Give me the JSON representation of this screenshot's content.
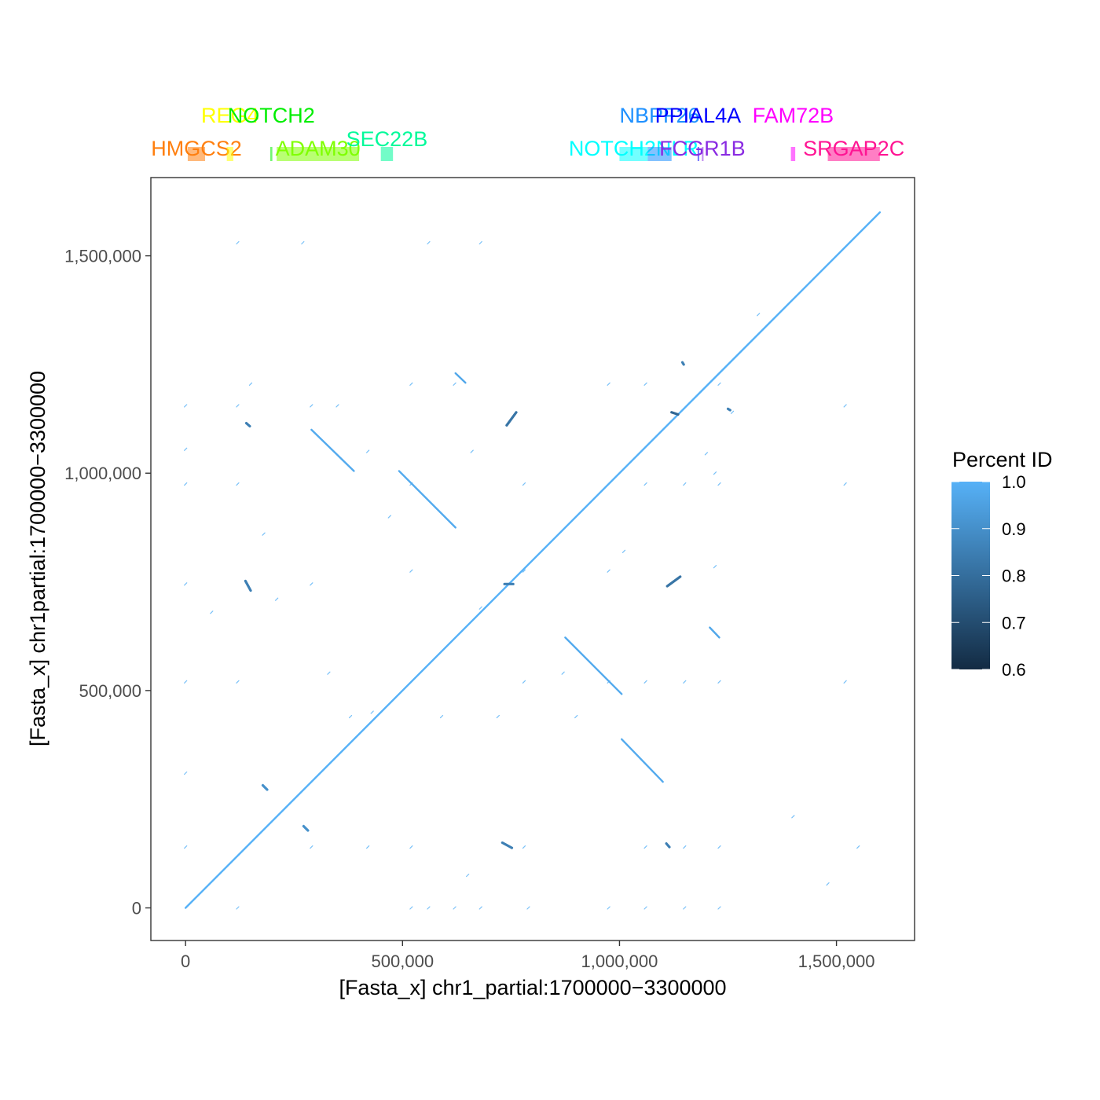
{
  "chart_data": {
    "type": "scatter",
    "title": "",
    "xlabel": "[Fasta_x] chr1_partial:1700000−3300000",
    "ylabel": "[Fasta_x] chr1partial:1700000−3300000",
    "xlim": [
      -80000,
      1680000
    ],
    "ylim": [
      -75000,
      1680000
    ],
    "x_ticks": [
      0,
      500000,
      1000000,
      1500000
    ],
    "x_tick_labels": [
      "0",
      "500,000",
      "1,000,000",
      "1,500,000"
    ],
    "y_ticks": [
      0,
      500000,
      1000000,
      1500000
    ],
    "y_tick_labels": [
      "0",
      "500,000",
      "1,000,000",
      "1,500,000"
    ],
    "grid": false,
    "legend": {
      "title": "Percent ID",
      "position": "right",
      "range": [
        0.6,
        1.0
      ],
      "ticks": [
        1.0,
        0.9,
        0.8,
        0.7,
        0.6
      ],
      "tick_labels": [
        "1.0",
        "0.9",
        "0.8",
        "0.7",
        "0.6"
      ],
      "color_low": "#132b43",
      "color_high": "#56b1f7"
    },
    "segments": [
      {
        "x1": 0,
        "y1": 0,
        "x2": 1600000,
        "y2": 1600000,
        "pid": 1.0
      },
      {
        "x1": 290000,
        "y1": 1100000,
        "x2": 388000,
        "y2": 1005000,
        "pid": 0.98
      },
      {
        "x1": 492000,
        "y1": 1005000,
        "x2": 622000,
        "y2": 875000,
        "pid": 0.98
      },
      {
        "x1": 875000,
        "y1": 622000,
        "x2": 1005000,
        "y2": 492000,
        "pid": 0.98
      },
      {
        "x1": 1005000,
        "y1": 388000,
        "x2": 1100000,
        "y2": 290000,
        "pid": 0.98
      },
      {
        "x1": 622000,
        "y1": 1230000,
        "x2": 645000,
        "y2": 1208000,
        "pid": 0.97
      },
      {
        "x1": 1208000,
        "y1": 645000,
        "x2": 1230000,
        "y2": 622000,
        "pid": 0.97
      },
      {
        "x1": 740000,
        "y1": 1110000,
        "x2": 762000,
        "y2": 1140000,
        "pid": 0.82
      },
      {
        "x1": 1110000,
        "y1": 740000,
        "x2": 1140000,
        "y2": 762000,
        "pid": 0.82
      },
      {
        "x1": 140000,
        "y1": 1115000,
        "x2": 148000,
        "y2": 1108000,
        "pid": 0.85
      },
      {
        "x1": 1108000,
        "y1": 148000,
        "x2": 1115000,
        "y2": 140000,
        "pid": 0.85
      },
      {
        "x1": 138000,
        "y1": 752000,
        "x2": 150000,
        "y2": 730000,
        "pid": 0.85
      },
      {
        "x1": 730000,
        "y1": 150000,
        "x2": 752000,
        "y2": 138000,
        "pid": 0.85
      },
      {
        "x1": 1120000,
        "y1": 1140000,
        "x2": 1135000,
        "y2": 1135000,
        "pid": 0.78
      },
      {
        "x1": 735000,
        "y1": 745000,
        "x2": 755000,
        "y2": 745000,
        "pid": 0.85
      },
      {
        "x1": 178000,
        "y1": 282000,
        "x2": 188000,
        "y2": 272000,
        "pid": 0.9
      },
      {
        "x1": 272000,
        "y1": 188000,
        "x2": 282000,
        "y2": 178000,
        "pid": 0.9
      },
      {
        "x1": 1145000,
        "y1": 1255000,
        "x2": 1148000,
        "y2": 1250000,
        "pid": 0.85
      },
      {
        "x1": 1250000,
        "y1": 1148000,
        "x2": 1255000,
        "y2": 1145000,
        "pid": 0.85
      }
    ],
    "dots": [
      {
        "x": 0,
        "y": 1155000
      },
      {
        "x": 0,
        "y": 745000
      },
      {
        "x": 0,
        "y": 520000
      },
      {
        "x": 0,
        "y": 975000
      },
      {
        "x": 0,
        "y": 1055000
      },
      {
        "x": 0,
        "y": 140000
      },
      {
        "x": 0,
        "y": 310000
      },
      {
        "x": 120000,
        "y": 1155000
      },
      {
        "x": 120000,
        "y": 975000
      },
      {
        "x": 120000,
        "y": 520000
      },
      {
        "x": 120000,
        "y": 0
      },
      {
        "x": 120000,
        "y": 1530000
      },
      {
        "x": 150000,
        "y": 1205000
      },
      {
        "x": 290000,
        "y": 1155000
      },
      {
        "x": 290000,
        "y": 745000
      },
      {
        "x": 290000,
        "y": 140000
      },
      {
        "x": 520000,
        "y": 1205000
      },
      {
        "x": 520000,
        "y": 975000
      },
      {
        "x": 520000,
        "y": 775000
      },
      {
        "x": 520000,
        "y": 520000
      },
      {
        "x": 520000,
        "y": 140000
      },
      {
        "x": 520000,
        "y": 0
      },
      {
        "x": 560000,
        "y": 1530000
      },
      {
        "x": 560000,
        "y": 0
      },
      {
        "x": 620000,
        "y": 1205000
      },
      {
        "x": 620000,
        "y": 0
      },
      {
        "x": 680000,
        "y": 1530000
      },
      {
        "x": 680000,
        "y": 0
      },
      {
        "x": 780000,
        "y": 975000
      },
      {
        "x": 780000,
        "y": 520000
      },
      {
        "x": 780000,
        "y": 140000
      },
      {
        "x": 790000,
        "y": 0
      },
      {
        "x": 975000,
        "y": 1205000
      },
      {
        "x": 975000,
        "y": 975000
      },
      {
        "x": 975000,
        "y": 775000
      },
      {
        "x": 975000,
        "y": 520000
      },
      {
        "x": 975000,
        "y": 0
      },
      {
        "x": 1060000,
        "y": 1205000
      },
      {
        "x": 1060000,
        "y": 975000
      },
      {
        "x": 1060000,
        "y": 520000
      },
      {
        "x": 1060000,
        "y": 140000
      },
      {
        "x": 1060000,
        "y": 0
      },
      {
        "x": 1150000,
        "y": 975000
      },
      {
        "x": 1150000,
        "y": 520000
      },
      {
        "x": 1150000,
        "y": 140000
      },
      {
        "x": 1150000,
        "y": 0
      },
      {
        "x": 1230000,
        "y": 1205000
      },
      {
        "x": 1230000,
        "y": 975000
      },
      {
        "x": 1230000,
        "y": 520000
      },
      {
        "x": 1230000,
        "y": 140000
      },
      {
        "x": 1230000,
        "y": 0
      },
      {
        "x": 1260000,
        "y": 1140000
      },
      {
        "x": 1320000,
        "y": 1365000
      },
      {
        "x": 1400000,
        "y": 210000
      },
      {
        "x": 1480000,
        "y": 55000
      },
      {
        "x": 1520000,
        "y": 1155000
      },
      {
        "x": 1520000,
        "y": 975000
      },
      {
        "x": 1520000,
        "y": 520000
      },
      {
        "x": 1550000,
        "y": 140000
      },
      {
        "x": 1220000,
        "y": 1000000
      },
      {
        "x": 1220000,
        "y": 785000
      },
      {
        "x": 1200000,
        "y": 1045000
      },
      {
        "x": 1010000,
        "y": 820000
      },
      {
        "x": 870000,
        "y": 540000
      },
      {
        "x": 900000,
        "y": 440000
      },
      {
        "x": 780000,
        "y": 775000
      },
      {
        "x": 660000,
        "y": 1050000
      },
      {
        "x": 420000,
        "y": 1050000
      },
      {
        "x": 430000,
        "y": 450000
      },
      {
        "x": 470000,
        "y": 900000
      },
      {
        "x": 590000,
        "y": 440000
      },
      {
        "x": 650000,
        "y": 75000
      },
      {
        "x": 680000,
        "y": 690000
      },
      {
        "x": 720000,
        "y": 440000
      },
      {
        "x": 380000,
        "y": 440000
      },
      {
        "x": 330000,
        "y": 540000
      },
      {
        "x": 270000,
        "y": 1530000
      },
      {
        "x": 350000,
        "y": 1155000
      },
      {
        "x": 180000,
        "y": 860000
      },
      {
        "x": 60000,
        "y": 680000
      },
      {
        "x": 210000,
        "y": 710000
      },
      {
        "x": 420000,
        "y": 140000
      }
    ],
    "genes": [
      {
        "name": "HMGCS2",
        "start": 5000,
        "end": 45000,
        "color": "#ff7f0e",
        "row": "lower"
      },
      {
        "name": "REG4",
        "start": 95000,
        "end": 110000,
        "color": "#ffff00",
        "row": "upper"
      },
      {
        "name": "NOTCH2",
        "start": 195000,
        "end": 200000,
        "color": "#00ee00",
        "row": "upper"
      },
      {
        "name": "ADAM30",
        "start": 210000,
        "end": 400000,
        "color": "#7fff00",
        "row": "lower"
      },
      {
        "name": "SEC22B",
        "start": 450000,
        "end": 478000,
        "color": "#00fa9a",
        "row": "middle"
      },
      {
        "name": "NOTCH2NLR",
        "start": 1000000,
        "end": 1065000,
        "color": "#00ffff",
        "row": "lower"
      },
      {
        "name": "NBPF26",
        "start": 1065000,
        "end": 1120000,
        "color": "#1e90ff",
        "row": "upper"
      },
      {
        "name": "PPIAL4A",
        "start": 1180000,
        "end": 1182000,
        "color": "#0000ff",
        "row": "upper"
      },
      {
        "name": "FCGR1B",
        "start": 1190000,
        "end": 1192000,
        "color": "#8a2be2",
        "row": "lower"
      },
      {
        "name": "FAM72B",
        "start": 1395000,
        "end": 1405000,
        "color": "#ff00ff",
        "row": "upper"
      },
      {
        "name": "SRGAP2C",
        "start": 1480000,
        "end": 1600000,
        "color": "#ff1493",
        "row": "lower"
      }
    ]
  }
}
